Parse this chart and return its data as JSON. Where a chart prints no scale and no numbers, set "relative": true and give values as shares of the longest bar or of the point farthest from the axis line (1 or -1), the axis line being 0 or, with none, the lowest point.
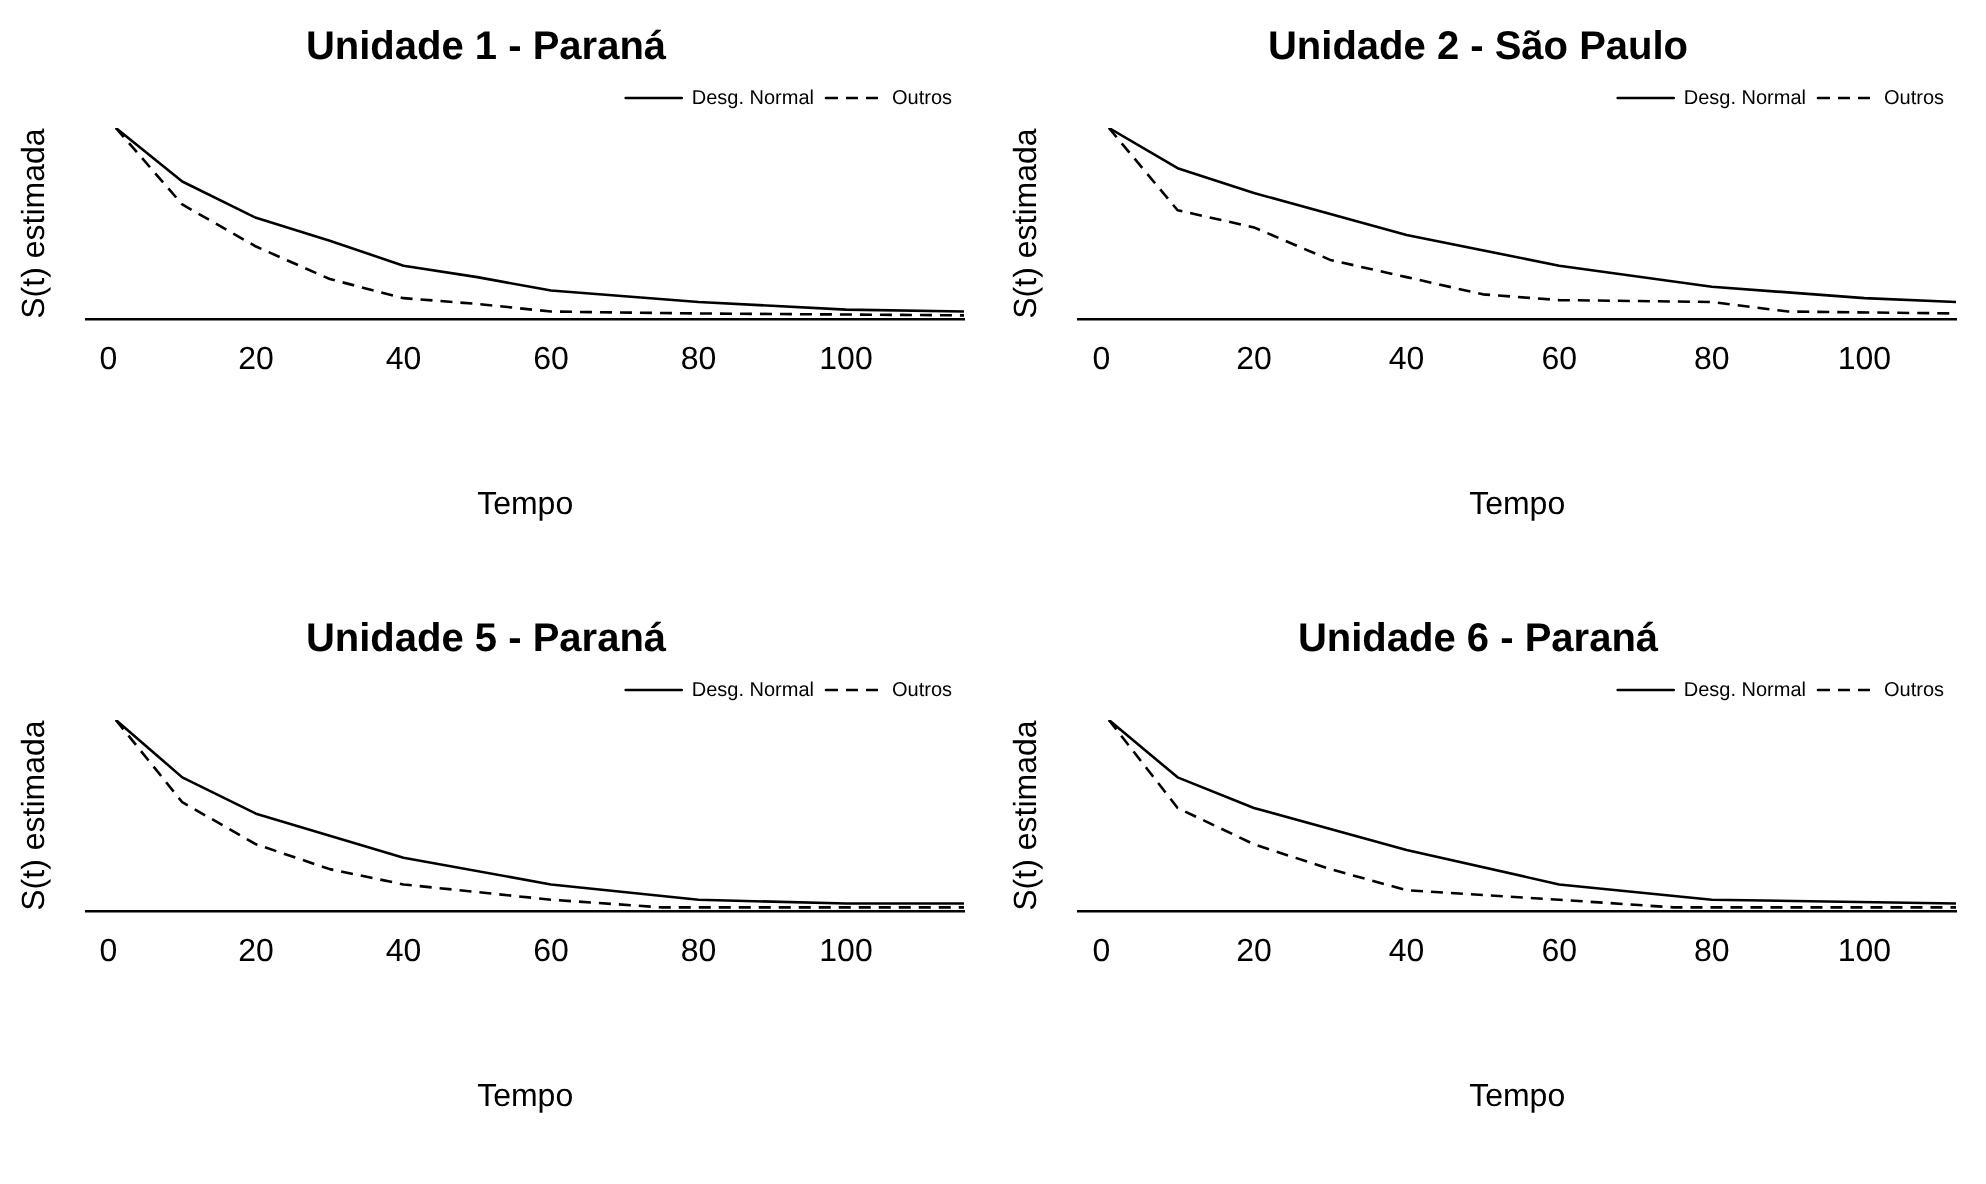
{
  "chart_data": [
    {
      "type": "line",
      "title": "Unidade 1 - Paraná",
      "xlabel": "Tempo",
      "ylabel": "S(t) estimada",
      "relative": true,
      "xlim": [
        -3,
        116
      ],
      "xticks": [
        0,
        20,
        40,
        60,
        80,
        100
      ],
      "legend": "top right",
      "marker": "none",
      "grid": false,
      "series": [
        {
          "name": "Desg. Normal",
          "color": "#000000",
          "line_style": "solid",
          "x": [
            1,
            10,
            20,
            30,
            40,
            50,
            60,
            80,
            100,
            116
          ],
          "values": [
            1,
            0.72,
            0.53,
            0.41,
            0.28,
            0.22,
            0.15,
            0.09,
            0.05,
            0.04
          ]
        },
        {
          "name": "Outros",
          "color": "#000000",
          "line_style": "dashed",
          "x": [
            1,
            10,
            20,
            30,
            40,
            50,
            60,
            80,
            116
          ],
          "values": [
            1,
            0.6,
            0.38,
            0.21,
            0.11,
            0.08,
            0.04,
            0.03,
            0.02
          ]
        }
      ]
    },
    {
      "type": "line",
      "title": "Unidade 2 - São Paulo",
      "xlabel": "Tempo",
      "ylabel": "S(t) estimada",
      "relative": true,
      "xlim": [
        -3,
        112
      ],
      "xticks": [
        0,
        20,
        40,
        60,
        80,
        100
      ],
      "legend": "top right",
      "marker": "none",
      "grid": false,
      "series": [
        {
          "name": "Desg. Normal",
          "color": "#000000",
          "line_style": "solid",
          "x": [
            1,
            10,
            20,
            40,
            60,
            80,
            100,
            112
          ],
          "values": [
            1,
            0.79,
            0.66,
            0.44,
            0.28,
            0.17,
            0.11,
            0.09
          ]
        },
        {
          "name": "Outros",
          "color": "#000000",
          "line_style": "dashed",
          "x": [
            1,
            10,
            20,
            30,
            40,
            50,
            60,
            80,
            90,
            112
          ],
          "values": [
            1,
            0.57,
            0.48,
            0.31,
            0.22,
            0.13,
            0.1,
            0.09,
            0.04,
            0.03
          ]
        }
      ]
    },
    {
      "type": "line",
      "title": "Unidade 5 - Paraná",
      "xlabel": "Tempo",
      "ylabel": "S(t) estimada",
      "relative": true,
      "xlim": [
        -3,
        116
      ],
      "xticks": [
        0,
        20,
        40,
        60,
        80,
        100
      ],
      "legend": "top right",
      "marker": "none",
      "grid": false,
      "series": [
        {
          "name": "Desg. Normal",
          "color": "#000000",
          "line_style": "solid",
          "x": [
            1,
            10,
            20,
            40,
            60,
            80,
            100,
            116
          ],
          "values": [
            1,
            0.7,
            0.51,
            0.28,
            0.14,
            0.06,
            0.04,
            0.04
          ]
        },
        {
          "name": "Outros",
          "color": "#000000",
          "line_style": "dashed",
          "x": [
            1,
            10,
            20,
            30,
            40,
            60,
            75,
            116
          ],
          "values": [
            1,
            0.57,
            0.35,
            0.22,
            0.14,
            0.06,
            0.02,
            0.02
          ]
        }
      ]
    },
    {
      "type": "line",
      "title": "Unidade 6 - Paraná",
      "xlabel": "Tempo",
      "ylabel": "S(t) estimada",
      "relative": true,
      "xlim": [
        -3,
        112
      ],
      "xticks": [
        0,
        20,
        40,
        60,
        80,
        100
      ],
      "legend": "top right",
      "marker": "none",
      "grid": false,
      "series": [
        {
          "name": "Desg. Normal",
          "color": "#000000",
          "line_style": "solid",
          "x": [
            1,
            10,
            20,
            40,
            60,
            80,
            112
          ],
          "values": [
            1,
            0.7,
            0.54,
            0.32,
            0.14,
            0.06,
            0.04
          ]
        },
        {
          "name": "Outros",
          "color": "#000000",
          "line_style": "dashed",
          "x": [
            1,
            10,
            20,
            30,
            40,
            60,
            75,
            112
          ],
          "values": [
            1,
            0.54,
            0.35,
            0.22,
            0.11,
            0.06,
            0.02,
            0.02
          ]
        }
      ]
    }
  ]
}
